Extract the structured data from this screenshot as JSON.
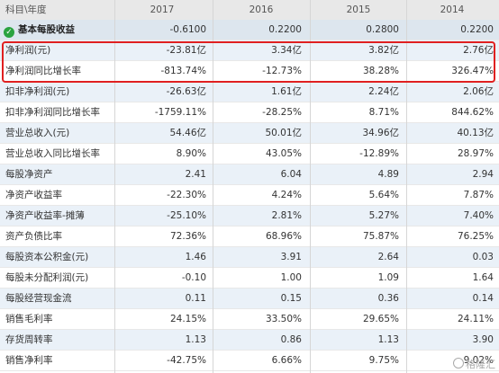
{
  "header": [
    "科目\\年度",
    "2017",
    "2016",
    "2015",
    "2014"
  ],
  "first_row": {
    "label": "基本每股收益",
    "values": [
      "-0.6100",
      "0.2200",
      "0.2800",
      "0.2200"
    ]
  },
  "rows": [
    {
      "label": "净利润(元)",
      "values": [
        "-23.81亿",
        "3.34亿",
        "3.82亿",
        "2.76亿"
      ]
    },
    {
      "label": "净利润同比增长率",
      "values": [
        "-813.74%",
        "-12.73%",
        "38.28%",
        "326.47%"
      ]
    },
    {
      "label": "扣非净利润(元)",
      "values": [
        "-26.63亿",
        "1.61亿",
        "2.24亿",
        "2.06亿"
      ]
    },
    {
      "label": "扣非净利润同比增长率",
      "values": [
        "-1759.11%",
        "-28.25%",
        "8.71%",
        "844.62%"
      ]
    },
    {
      "label": "营业总收入(元)",
      "values": [
        "54.46亿",
        "50.01亿",
        "34.96亿",
        "40.13亿"
      ]
    },
    {
      "label": "营业总收入同比增长率",
      "values": [
        "8.90%",
        "43.05%",
        "-12.89%",
        "28.97%"
      ]
    },
    {
      "label": "每股净资产",
      "values": [
        "2.41",
        "6.04",
        "4.89",
        "2.94"
      ]
    },
    {
      "label": "净资产收益率",
      "values": [
        "-22.30%",
        "4.24%",
        "5.64%",
        "7.87%"
      ]
    },
    {
      "label": "净资产收益率-摊薄",
      "values": [
        "-25.10%",
        "2.81%",
        "5.27%",
        "7.40%"
      ]
    },
    {
      "label": "资产负债比率",
      "values": [
        "72.36%",
        "68.96%",
        "75.87%",
        "76.25%"
      ]
    },
    {
      "label": "每股资本公积金(元)",
      "values": [
        "1.46",
        "3.91",
        "2.64",
        "0.03"
      ]
    },
    {
      "label": "每股未分配利润(元)",
      "values": [
        "-0.10",
        "1.00",
        "1.09",
        "1.64"
      ]
    },
    {
      "label": "每股经营现金流",
      "values": [
        "0.11",
        "0.15",
        "0.36",
        "0.14"
      ]
    },
    {
      "label": "销售毛利率",
      "values": [
        "24.15%",
        "33.50%",
        "29.65%",
        "24.11%"
      ]
    },
    {
      "label": "存货周转率",
      "values": [
        "1.13",
        "0.86",
        "1.13",
        "3.90"
      ]
    },
    {
      "label": "销售净利率",
      "values": [
        "-42.75%",
        "6.66%",
        "9.75%",
        "9.02%"
      ]
    }
  ],
  "watermark": "格隆汇",
  "colors": {
    "highlight": "#e02020",
    "check": "#2aa33f",
    "row_alt": "#eaf1f8"
  }
}
